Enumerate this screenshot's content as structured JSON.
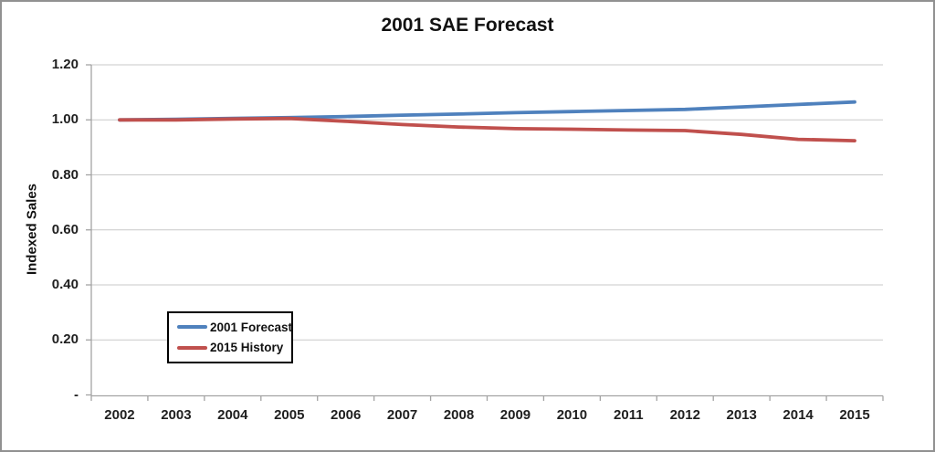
{
  "chart_data": {
    "type": "line",
    "title": "2001 SAE Forecast",
    "xlabel": "",
    "ylabel": "Indexed Sales",
    "categories": [
      "2002",
      "2003",
      "2004",
      "2005",
      "2006",
      "2007",
      "2008",
      "2009",
      "2010",
      "2011",
      "2012",
      "2013",
      "2014",
      "2015"
    ],
    "series": [
      {
        "name": "2001 Forecast",
        "color": "#4F81BD",
        "values": [
          1.0,
          1.002,
          1.005,
          1.008,
          1.012,
          1.017,
          1.021,
          1.026,
          1.03,
          1.034,
          1.038,
          1.047,
          1.056,
          1.065
        ]
      },
      {
        "name": "2015 History",
        "color": "#C0504D",
        "values": [
          1.0,
          1.0,
          1.003,
          1.005,
          0.995,
          0.983,
          0.974,
          0.968,
          0.966,
          0.963,
          0.961,
          0.947,
          0.929,
          0.924
        ]
      }
    ],
    "ylim": [
      0,
      1.2
    ],
    "y_ticks": [
      {
        "value": 0.0,
        "label": "-"
      },
      {
        "value": 0.2,
        "label": "0.20"
      },
      {
        "value": 0.4,
        "label": "0.40"
      },
      {
        "value": 0.6,
        "label": "0.60"
      },
      {
        "value": 0.8,
        "label": "0.80"
      },
      {
        "value": 1.0,
        "label": "1.00"
      },
      {
        "value": 1.2,
        "label": "1.20"
      }
    ],
    "grid": true,
    "legend_position": "inside-bottom-left",
    "style": {
      "gridline_color": "#C9C9C9",
      "axis_color": "#A3A3A3",
      "frame_border_color": "#919191",
      "text_color": "#1F1F1F"
    }
  }
}
